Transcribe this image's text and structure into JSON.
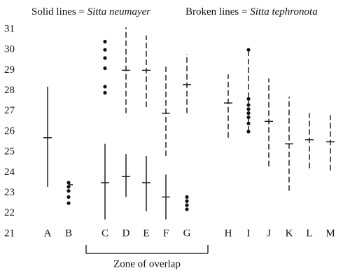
{
  "chart_data": {
    "type": "range",
    "categories": [
      "A",
      "B",
      "C",
      "D",
      "E",
      "F",
      "G",
      "H",
      "I",
      "J",
      "K",
      "L",
      "M"
    ],
    "series": [
      {
        "label": "Solid lines =",
        "name": "Sitta neumayer",
        "color": "#111",
        "dashed": false,
        "low": [
          23.3,
          null,
          21.7,
          22.8,
          22.1,
          21.7,
          null,
          null,
          null,
          null,
          null,
          null,
          null
        ],
        "high": [
          28.2,
          null,
          25.4,
          24.9,
          24.8,
          23.9,
          null,
          null,
          null,
          null,
          null,
          null,
          null
        ],
        "mean": [
          25.7,
          23.4,
          23.5,
          23.8,
          23.5,
          22.8,
          null,
          null,
          null,
          null,
          null,
          null,
          null
        ],
        "points": [
          [],
          [
            23.5,
            23.3,
            23.1,
            22.8,
            22.5
          ],
          [],
          [],
          [],
          [],
          [
            22.8,
            22.6,
            22.4,
            22.2
          ],
          [],
          [],
          [],
          [],
          [],
          []
        ]
      },
      {
        "label": "Broken lines =",
        "name": "Sitta tephronota",
        "color": "#111",
        "dashed": true,
        "low": [
          null,
          null,
          null,
          26.9,
          27.2,
          24.8,
          26.9,
          25.7,
          26.0,
          24.3,
          23.1,
          24.2,
          24.1
        ],
        "high": [
          null,
          null,
          null,
          31.1,
          30.7,
          29.2,
          29.8,
          28.8,
          30.0,
          28.6,
          27.7,
          26.9,
          26.8
        ],
        "mean": [
          null,
          null,
          null,
          29.0,
          29.0,
          26.9,
          28.3,
          27.4,
          null,
          26.5,
          25.4,
          25.6,
          25.5
        ],
        "points": [
          [],
          [],
          [
            30.4,
            30.0,
            29.6,
            29.1,
            28.2,
            27.9
          ],
          [],
          [],
          [],
          [],
          [],
          [
            30.0,
            27.6,
            27.3,
            27.1,
            26.9,
            26.7,
            26.4,
            26.0
          ],
          [],
          [],
          [],
          []
        ]
      }
    ],
    "ylim": [
      21,
      31
    ],
    "yticks": [
      21,
      22,
      23,
      24,
      25,
      26,
      27,
      28,
      29,
      30,
      31
    ],
    "annotation": "Zone of overlap",
    "bracket": [
      "C",
      "G"
    ]
  }
}
